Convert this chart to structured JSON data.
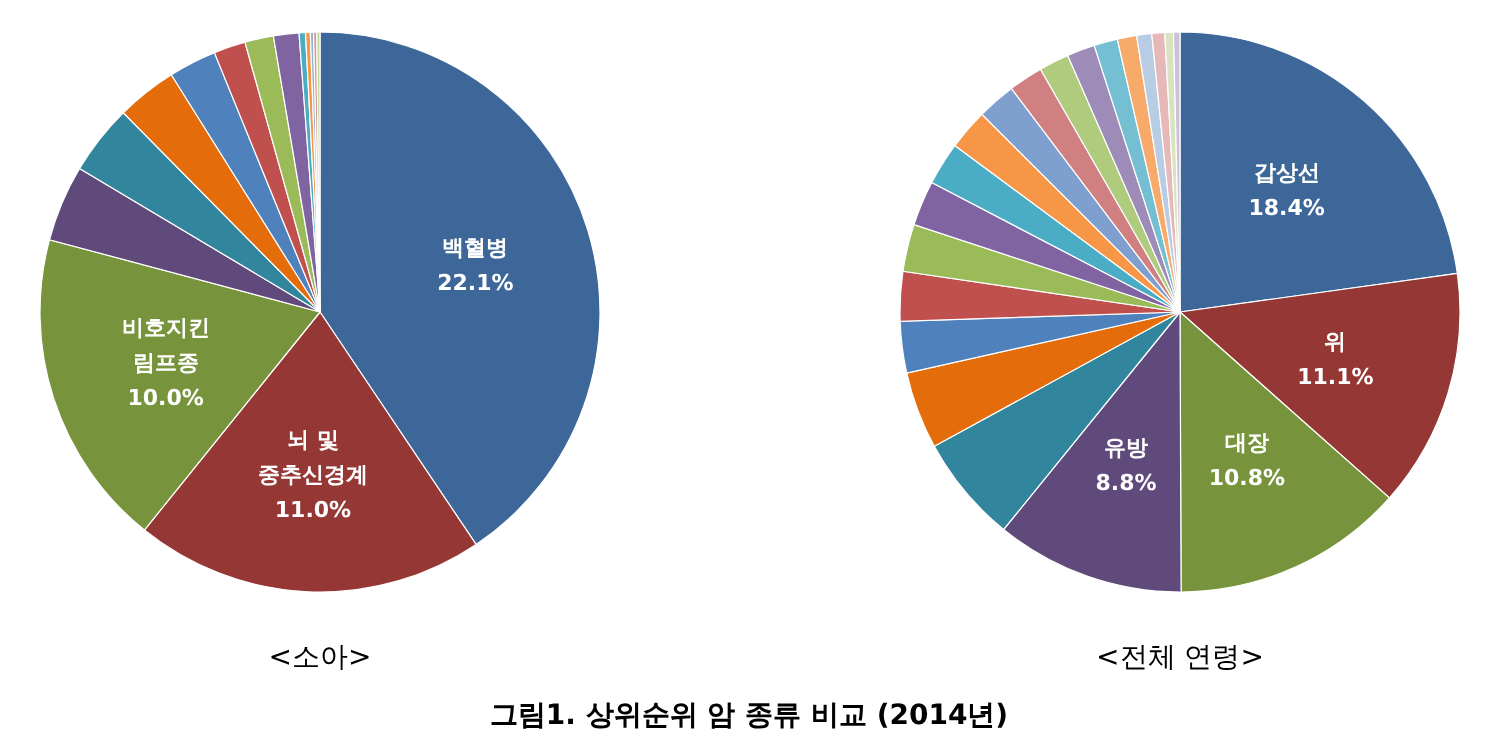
{
  "chart_data": [
    {
      "type": "pie",
      "title": "<소아>",
      "categories": [
        "백혈병",
        "뇌 및\n중추신경계",
        "비호지킨\n림프종",
        null,
        null,
        null,
        null,
        null,
        null,
        null,
        null,
        null,
        null,
        null,
        null
      ],
      "values": [
        22.1,
        11.0,
        10.0,
        2.4,
        2.2,
        1.9,
        1.5,
        1.0,
        0.9,
        0.8,
        0.2,
        0.15,
        0.1,
        0.1,
        0.1
      ],
      "value_labels": [
        "22.1%",
        "11.0%",
        "10.0%",
        null,
        null,
        null,
        null,
        null,
        null,
        null,
        null,
        null,
        null,
        null,
        null
      ],
      "colors": [
        "#3d6799",
        "#953735",
        "#77933c",
        "#604a7b",
        "#31859c",
        "#e46c0a",
        "#4f81bd",
        "#c0504d",
        "#9bbb59",
        "#8064a2",
        "#4bacc6",
        "#f79646",
        "#95b3d7",
        "#d99694",
        "#c3d69b"
      ],
      "annotations": [
        "그림1. 상위순위 암 종류 비교 (2014년)"
      ]
    },
    {
      "type": "pie",
      "title": "<전체 연령>",
      "categories": [
        "갑상선",
        "위",
        "대장",
        "유방",
        null,
        null,
        null,
        null,
        null,
        null,
        null,
        null,
        null,
        null,
        null,
        null,
        null,
        null,
        null,
        null,
        null,
        null
      ],
      "values": [
        18.4,
        11.1,
        10.8,
        8.8,
        5.0,
        3.6,
        2.4,
        2.3,
        2.2,
        2.1,
        2.0,
        1.9,
        1.8,
        1.6,
        1.4,
        1.3,
        1.1,
        0.9,
        0.7,
        0.6,
        0.4,
        0.3
      ],
      "value_labels": [
        "18.4%",
        "11.1%",
        "10.8%",
        "8.8%",
        null,
        null,
        null,
        null,
        null,
        null,
        null,
        null,
        null,
        null,
        null,
        null,
        null,
        null,
        null,
        null,
        null,
        null
      ],
      "colors": [
        "#3d6799",
        "#953735",
        "#77933c",
        "#604a7b",
        "#31859c",
        "#e46c0a",
        "#4f81bd",
        "#c0504d",
        "#9bbb59",
        "#8064a2",
        "#4bacc6",
        "#f79646",
        "#7f9fcf",
        "#d08080",
        "#aecb7e",
        "#9d8bb8",
        "#75bfd2",
        "#f8aa6b",
        "#b8cce4",
        "#e6b9b8",
        "#d7e4bd",
        "#ccc1da"
      ]
    }
  ]
}
